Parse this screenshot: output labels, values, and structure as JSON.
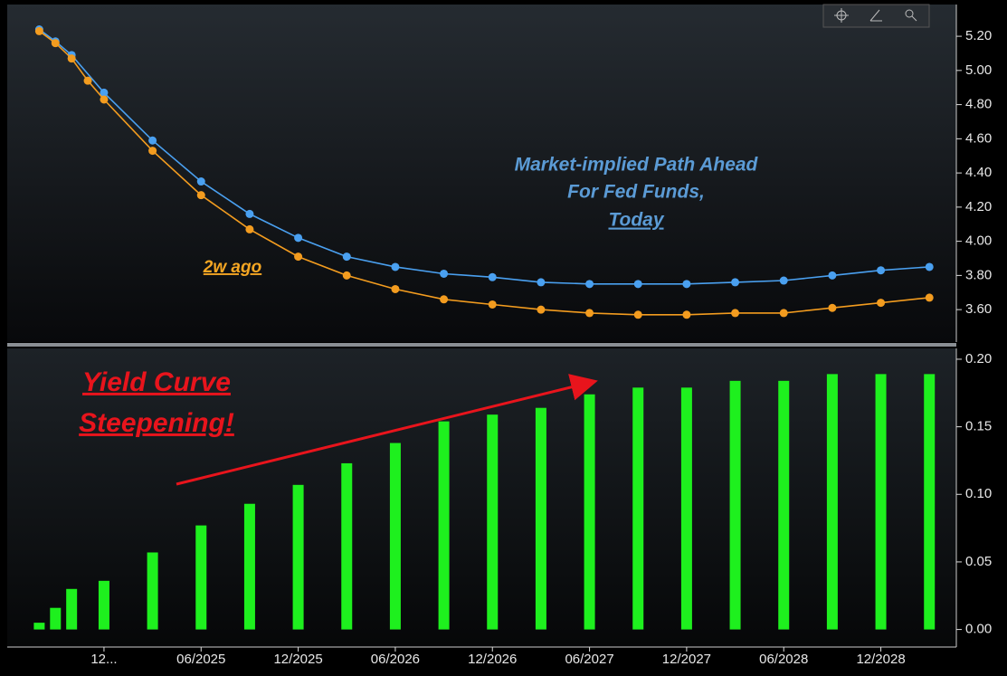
{
  "chart_data": [
    {
      "type": "line",
      "annotations": [
        "Market-implied Path Ahead",
        "For Fed Funds,"
      ],
      "xlim": [
        "07/2024",
        "05/2029"
      ],
      "ylim": [
        3.41,
        5.37
      ],
      "yticks": [
        {
          "value": 3.6,
          "label": "3.60"
        },
        {
          "value": 3.8,
          "label": "3.80"
        },
        {
          "value": 4.0,
          "label": "4.00"
        },
        {
          "value": 4.2,
          "label": "4.20"
        },
        {
          "value": 4.4,
          "label": "4.40"
        },
        {
          "value": 4.6,
          "label": "4.60"
        },
        {
          "value": 4.8,
          "label": "4.80"
        },
        {
          "value": 5.0,
          "label": "5.00"
        },
        {
          "value": 5.2,
          "label": "5.20"
        }
      ],
      "series": [
        {
          "name": "Today",
          "color": "#4aa0f0",
          "x": [
            "08/2024",
            "09/2024",
            "10/2024",
            "12/2024",
            "03/2025",
            "06/2025",
            "09/2025",
            "12/2025",
            "03/2026",
            "06/2026",
            "09/2026",
            "12/2026",
            "03/2027",
            "06/2027",
            "09/2027",
            "12/2027",
            "03/2028",
            "06/2028",
            "09/2028",
            "12/2028",
            "03/2029"
          ],
          "values": [
            5.24,
            5.17,
            5.09,
            4.87,
            4.59,
            4.35,
            4.16,
            4.02,
            3.91,
            3.85,
            3.81,
            3.79,
            3.76,
            3.75,
            3.75,
            3.75,
            3.76,
            3.77,
            3.8,
            3.83,
            3.85
          ]
        },
        {
          "name": "2w ago",
          "color": "#f39c1f",
          "x": [
            "08/2024",
            "09/2024",
            "10/2024",
            "11/2024",
            "12/2024",
            "03/2025",
            "06/2025",
            "09/2025",
            "12/2025",
            "03/2026",
            "06/2026",
            "09/2026",
            "12/2026",
            "03/2027",
            "06/2027",
            "09/2027",
            "12/2027",
            "03/2028",
            "06/2028",
            "09/2028",
            "12/2028",
            "03/2029"
          ],
          "values": [
            5.23,
            5.16,
            5.07,
            4.94,
            4.83,
            4.53,
            4.27,
            4.07,
            3.91,
            3.8,
            3.72,
            3.66,
            3.63,
            3.6,
            3.58,
            3.57,
            3.57,
            3.58,
            3.58,
            3.61,
            3.64,
            3.67
          ]
        }
      ]
    },
    {
      "type": "bar",
      "annotations": [
        "Yield Curve",
        "Steepening!"
      ],
      "color": "#1ef01e",
      "x": [
        "08/2024",
        "09/2024",
        "10/2024",
        "12/2024",
        "03/2025",
        "06/2025",
        "09/2025",
        "12/2025",
        "03/2026",
        "06/2026",
        "09/2026",
        "12/2026",
        "03/2027",
        "06/2027",
        "09/2027",
        "12/2027",
        "03/2028",
        "06/2028",
        "09/2028",
        "12/2028",
        "03/2029"
      ],
      "values": [
        0.005,
        0.016,
        0.03,
        0.036,
        0.057,
        0.077,
        0.093,
        0.107,
        0.123,
        0.138,
        0.154,
        0.159,
        0.164,
        0.174,
        0.179,
        0.179,
        0.184,
        0.184,
        0.189,
        0.189,
        0.189
      ],
      "xlim": [
        "07/2024",
        "05/2029"
      ],
      "xticks": [
        {
          "value": "12/2024",
          "label": "12..."
        },
        "06/2025",
        "12/2025",
        "06/2026",
        "12/2026",
        "06/2027",
        "12/2027",
        "06/2028",
        "12/2028"
      ],
      "ylim": [
        -0.013,
        0.208
      ],
      "yticks": [
        {
          "value": 0,
          "label": "0.00"
        },
        {
          "value": 0.05,
          "label": "0.05"
        },
        {
          "value": 0.1,
          "label": "0.10"
        },
        {
          "value": 0.15,
          "label": "0.15"
        },
        {
          "value": 0.2,
          "label": "0.20"
        }
      ]
    }
  ]
}
